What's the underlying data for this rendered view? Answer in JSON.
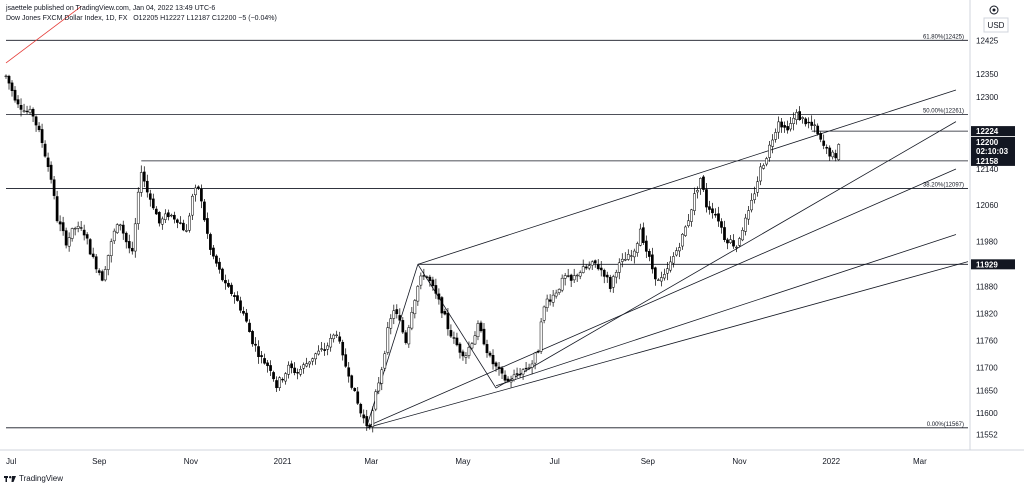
{
  "header": {
    "publisher": "jsaettele published on TradingView.com, Jan 04, 2022 13:49 UTC-6",
    "symbol": "Dow Jones FXCM Dollar Index, 1D, FX",
    "ohlc": "O12205 H12227 L12187 C12200 −5 (−0.04%)"
  },
  "footer": {
    "brand": "TradingView",
    "logo_icon": "tradingview-logo-icon"
  },
  "price_axis": {
    "currency": "USD",
    "settings_icon": "gear-icon"
  },
  "chart_data": {
    "type": "candlestick",
    "symbol": "Dow Jones FXCM Dollar Index",
    "interval": "1D",
    "ylim": [
      11525,
      12490
    ],
    "y_ticks": [
      12425,
      12350,
      12300,
      12140,
      12060,
      11980,
      11880,
      11820,
      11760,
      11700,
      11650,
      11600,
      11552
    ],
    "x_ticks": [
      {
        "label": "Jul",
        "t": 0
      },
      {
        "label": "Sep",
        "t": 62
      },
      {
        "label": "Nov",
        "t": 123
      },
      {
        "label": "2021",
        "t": 184
      },
      {
        "label": "Mar",
        "t": 243
      },
      {
        "label": "May",
        "t": 304
      },
      {
        "label": "Jul",
        "t": 365
      },
      {
        "label": "Sep",
        "t": 427
      },
      {
        "label": "Nov",
        "t": 488
      },
      {
        "label": "2022",
        "t": 549
      },
      {
        "label": "Mar",
        "t": 608
      }
    ],
    "x_range": [
      0,
      640
    ],
    "price_path": [
      [
        0,
        12345
      ],
      [
        6,
        12300
      ],
      [
        12,
        12270
      ],
      [
        18,
        12260
      ],
      [
        24,
        12200
      ],
      [
        30,
        12120
      ],
      [
        34,
        12030
      ],
      [
        40,
        11980
      ],
      [
        46,
        12010
      ],
      [
        52,
        12000
      ],
      [
        58,
        11940
      ],
      [
        64,
        11900
      ],
      [
        68,
        11950
      ],
      [
        72,
        12000
      ],
      [
        76,
        12020
      ],
      [
        80,
        11980
      ],
      [
        84,
        11950
      ],
      [
        88,
        12080
      ],
      [
        90,
        12140
      ],
      [
        94,
        12090
      ],
      [
        98,
        12060
      ],
      [
        102,
        12020
      ],
      [
        108,
        12040
      ],
      [
        114,
        12030
      ],
      [
        120,
        12000
      ],
      [
        124,
        12080
      ],
      [
        128,
        12100
      ],
      [
        132,
        12030
      ],
      [
        136,
        11960
      ],
      [
        140,
        11930
      ],
      [
        146,
        11880
      ],
      [
        152,
        11860
      ],
      [
        158,
        11820
      ],
      [
        164,
        11760
      ],
      [
        170,
        11720
      ],
      [
        176,
        11700
      ],
      [
        180,
        11660
      ],
      [
        184,
        11680
      ],
      [
        188,
        11700
      ],
      [
        194,
        11690
      ],
      [
        200,
        11710
      ],
      [
        206,
        11730
      ],
      [
        212,
        11740
      ],
      [
        216,
        11760
      ],
      [
        220,
        11780
      ],
      [
        224,
        11720
      ],
      [
        228,
        11690
      ],
      [
        232,
        11640
      ],
      [
        236,
        11600
      ],
      [
        240,
        11575
      ],
      [
        243,
        11580
      ],
      [
        246,
        11640
      ],
      [
        250,
        11700
      ],
      [
        254,
        11780
      ],
      [
        258,
        11830
      ],
      [
        262,
        11800
      ],
      [
        266,
        11760
      ],
      [
        270,
        11830
      ],
      [
        274,
        11880
      ],
      [
        278,
        11910
      ],
      [
        282,
        11890
      ],
      [
        286,
        11860
      ],
      [
        290,
        11830
      ],
      [
        294,
        11790
      ],
      [
        298,
        11760
      ],
      [
        302,
        11740
      ],
      [
        306,
        11730
      ],
      [
        310,
        11760
      ],
      [
        314,
        11790
      ],
      [
        318,
        11760
      ],
      [
        322,
        11720
      ],
      [
        326,
        11700
      ],
      [
        330,
        11680
      ],
      [
        334,
        11670
      ],
      [
        338,
        11680
      ],
      [
        342,
        11690
      ],
      [
        346,
        11700
      ],
      [
        350,
        11710
      ],
      [
        354,
        11740
      ],
      [
        356,
        11810
      ],
      [
        360,
        11850
      ],
      [
        364,
        11860
      ],
      [
        368,
        11880
      ],
      [
        372,
        11900
      ],
      [
        376,
        11890
      ],
      [
        380,
        11910
      ],
      [
        386,
        11920
      ],
      [
        392,
        11930
      ],
      [
        398,
        11910
      ],
      [
        402,
        11880
      ],
      [
        406,
        11920
      ],
      [
        412,
        11940
      ],
      [
        418,
        11950
      ],
      [
        422,
        12010
      ],
      [
        426,
        11960
      ],
      [
        430,
        11920
      ],
      [
        434,
        11890
      ],
      [
        438,
        11900
      ],
      [
        442,
        11930
      ],
      [
        446,
        11960
      ],
      [
        450,
        11990
      ],
      [
        454,
        12030
      ],
      [
        458,
        12080
      ],
      [
        462,
        12120
      ],
      [
        466,
        12060
      ],
      [
        470,
        12050
      ],
      [
        474,
        12030
      ],
      [
        478,
        11990
      ],
      [
        482,
        11980
      ],
      [
        486,
        11970
      ],
      [
        490,
        12010
      ],
      [
        494,
        12040
      ],
      [
        498,
        12090
      ],
      [
        502,
        12140
      ],
      [
        506,
        12170
      ],
      [
        510,
        12210
      ],
      [
        514,
        12250
      ],
      [
        518,
        12230
      ],
      [
        522,
        12240
      ],
      [
        526,
        12260
      ],
      [
        530,
        12250
      ],
      [
        534,
        12240
      ],
      [
        538,
        12230
      ],
      [
        542,
        12200
      ],
      [
        546,
        12180
      ],
      [
        550,
        12170
      ],
      [
        552,
        12158
      ],
      [
        554,
        12200
      ]
    ],
    "horizontal_levels": [
      {
        "label": "61.80%(12425)",
        "value": 12425
      },
      {
        "label": "50.00%(12261)",
        "value": 12261
      },
      {
        "label": "",
        "value": 12224
      },
      {
        "label": "",
        "value": 12158
      },
      {
        "label": "38.20%(12097)",
        "value": 12097
      },
      {
        "label": "",
        "value": 11929
      },
      {
        "label": "0.00%(11567)",
        "value": 11567
      }
    ],
    "level_starts": {
      "12224": 536,
      "12158": 90,
      "11929": 274
    },
    "trendlines": [
      {
        "t1": 0,
        "v1": 12375,
        "t2": 50,
        "v2": 12500,
        "color": "#e53935"
      },
      {
        "t1": 274,
        "v1": 11929,
        "t2": 632,
        "v2": 12315,
        "color": "#131722"
      },
      {
        "t1": 240,
        "v1": 11570,
        "t2": 632,
        "v2": 12140,
        "color": "#131722"
      },
      {
        "t1": 326,
        "v1": 11655,
        "t2": 632,
        "v2": 12245,
        "color": "#131722"
      },
      {
        "t1": 240,
        "v1": 11570,
        "t2": 274,
        "v2": 11929,
        "color": "#131722"
      },
      {
        "t1": 274,
        "v1": 11929,
        "t2": 326,
        "v2": 11655,
        "color": "#131722"
      },
      {
        "t1": 326,
        "v1": 11660,
        "t2": 632,
        "v2": 11995,
        "color": "#131722"
      },
      {
        "t1": 240,
        "v1": 11567,
        "t2": 640,
        "v2": 11935,
        "color": "#131722"
      }
    ],
    "price_tags": [
      {
        "value": 12224,
        "label": "12224",
        "bg": "#131722"
      },
      {
        "value": 12200,
        "label": "12200",
        "bg": "#131722",
        "countdown": "02:10:03"
      },
      {
        "value": 12158,
        "label": "12158",
        "bg": "#131722"
      },
      {
        "value": 11929,
        "label": "11929",
        "bg": "#131722"
      }
    ],
    "colors": {
      "up": "#ffffff",
      "down": "#000000",
      "wick": "#000000",
      "level_line": "#131722",
      "grid": "#f0f3fa"
    }
  }
}
